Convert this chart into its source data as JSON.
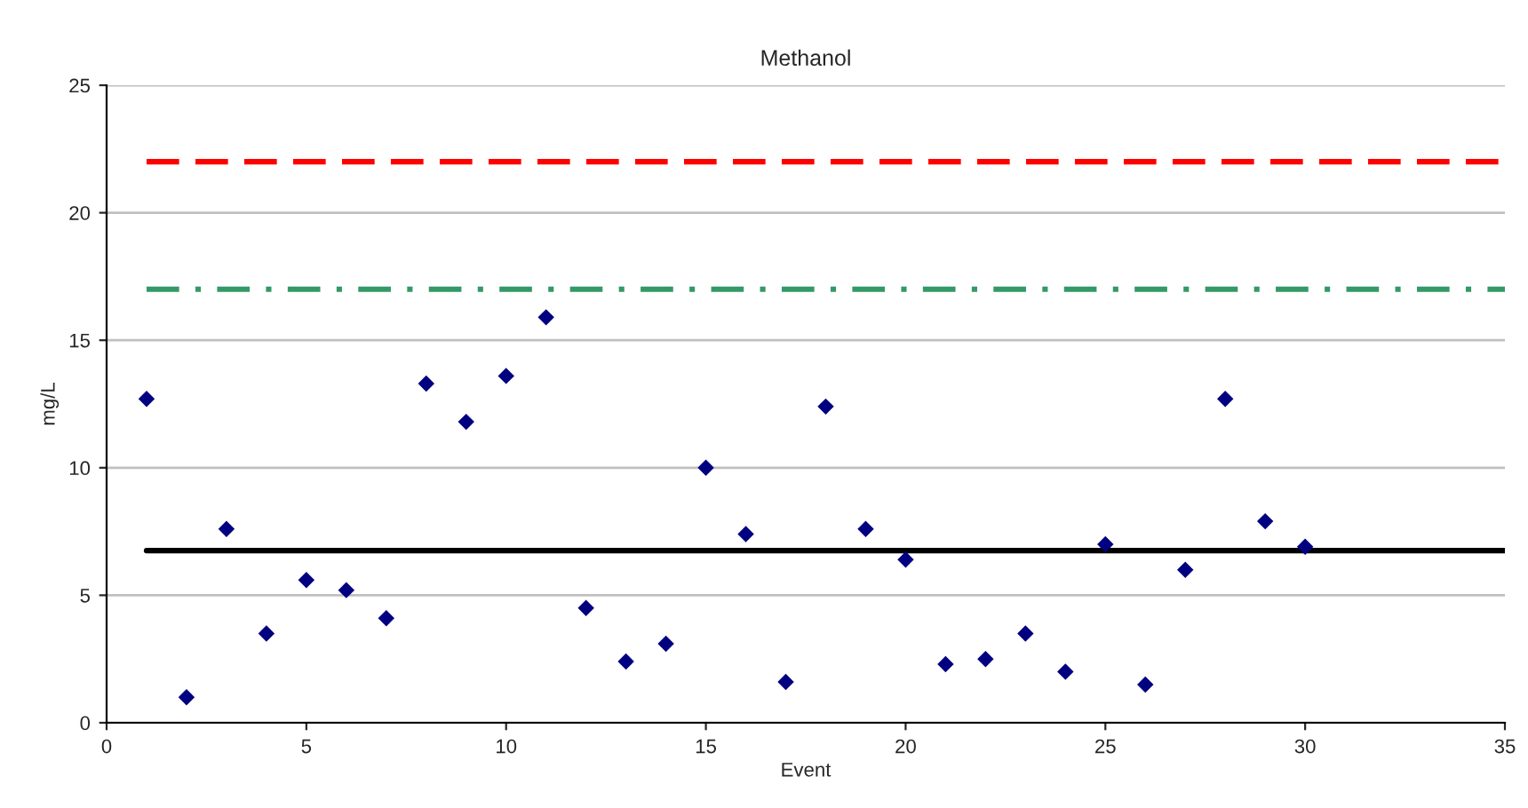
{
  "chart_data": {
    "type": "scatter",
    "title": "Methanol",
    "xlabel": "Event",
    "ylabel": "mg/L",
    "xlim": [
      0,
      35
    ],
    "xticks": [
      0,
      5,
      10,
      15,
      20,
      25,
      30,
      35
    ],
    "ylim": [
      0,
      25
    ],
    "yticks": [
      0,
      5,
      10,
      15,
      20,
      25
    ],
    "grid": "y",
    "series": [
      {
        "marker": "diamond",
        "color": "#000080",
        "x": [
          1,
          2,
          3,
          4,
          5,
          6,
          7,
          8,
          9,
          10,
          11,
          12,
          13,
          14,
          15,
          16,
          17,
          18,
          19,
          20,
          21,
          22,
          23,
          24,
          25,
          26,
          27,
          28,
          29,
          30
        ],
        "values": [
          12.7,
          1.0,
          7.6,
          3.5,
          5.6,
          5.2,
          4.1,
          13.3,
          11.8,
          13.6,
          15.9,
          4.5,
          2.4,
          3.1,
          10.0,
          7.4,
          1.6,
          12.4,
          7.6,
          6.4,
          2.3,
          2.5,
          3.5,
          2.0,
          7.0,
          1.5,
          6.0,
          12.7,
          7.9,
          6.9
        ]
      },
      {
        "type": "line",
        "color": "#ff0000",
        "line_style": "dashed",
        "marker": "none",
        "x": [
          1,
          35
        ],
        "values": [
          22,
          22
        ]
      },
      {
        "type": "line",
        "color": "#339966",
        "line_style": "dashdot",
        "marker": "none",
        "x": [
          1,
          35
        ],
        "values": [
          17,
          17
        ]
      },
      {
        "type": "line",
        "color": "#000000",
        "line_style": "solid",
        "marker": "none",
        "x": [
          1,
          35
        ],
        "values": [
          6.75,
          6.75
        ]
      }
    ]
  }
}
